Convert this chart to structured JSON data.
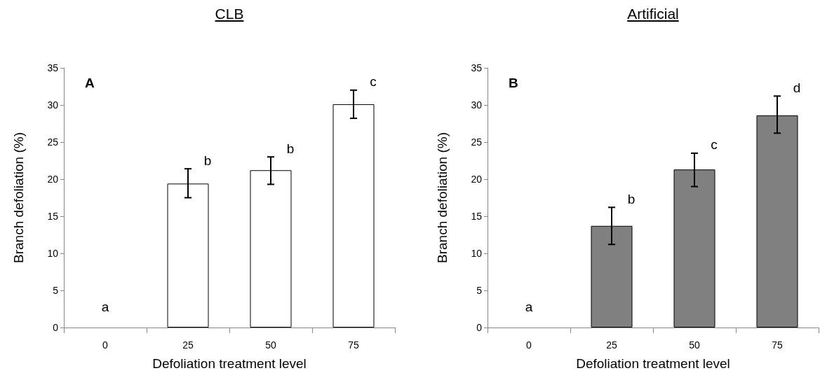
{
  "chart_data": [
    {
      "type": "bar",
      "title": "CLB",
      "xlabel": "Defoliation treatment level",
      "ylabel": "Branch defoliation (%)",
      "categories": [
        "0",
        "25",
        "50",
        "75"
      ],
      "series": [
        {
          "color": "#ffffff",
          "values": [
            0,
            19.4,
            21.2,
            30.1
          ],
          "errors": [
            null,
            [
              17.5,
              21.4
            ],
            [
              19.3,
              23.0
            ],
            [
              28.2,
              32.0
            ]
          ]
        }
      ],
      "ylim": [
        0,
        35
      ],
      "yticks": [
        0,
        5,
        10,
        15,
        20,
        25,
        30,
        35
      ],
      "annotations": [
        "A",
        "a",
        "b",
        "b",
        "c"
      ]
    },
    {
      "type": "bar",
      "title": "Artificial",
      "xlabel": "Defoliation treatment level",
      "ylabel": "Branch defoliation (%)",
      "categories": [
        "0",
        "25",
        "50",
        "75"
      ],
      "series": [
        {
          "color": "#808080",
          "values": [
            0,
            13.7,
            21.3,
            28.6
          ],
          "errors": [
            null,
            [
              11.2,
              16.2
            ],
            [
              19.0,
              23.5
            ],
            [
              26.2,
              31.2
            ]
          ]
        }
      ],
      "ylim": [
        0,
        35
      ],
      "yticks": [
        0,
        5,
        10,
        15,
        20,
        25,
        30,
        35
      ],
      "annotations": [
        "B",
        "a",
        "b",
        "c",
        "d"
      ]
    }
  ]
}
